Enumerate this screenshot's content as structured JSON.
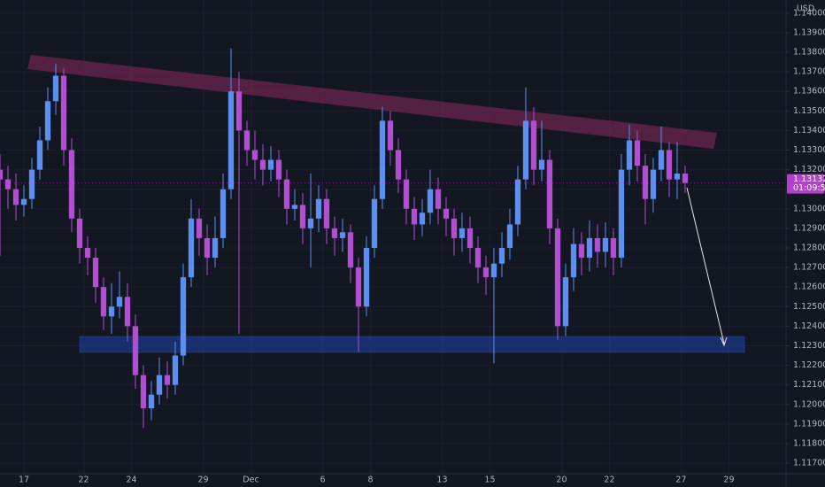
{
  "chart_data": {
    "type": "candlestick",
    "currency": "USD",
    "last_price_label": "1.13132",
    "countdown": "01:09:54",
    "up_color": "#5d8ff0",
    "down_color": "#b04fd0",
    "last_color": "#b63fcf",
    "open": [
      1.132,
      1.1315,
      1.131,
      1.1302,
      1.1305,
      1.132,
      1.1335,
      1.1355,
      1.1368,
      1.133,
      1.1295,
      1.128,
      1.1275,
      1.126,
      1.1245,
      1.125,
      1.1255,
      1.124,
      1.1215,
      1.1198,
      1.1205,
      1.1215,
      1.121,
      1.1225,
      1.1265,
      1.1295,
      1.1285,
      1.1275,
      1.1285,
      1.131,
      1.136,
      1.134,
      1.133,
      1.1325,
      1.132,
      1.1325,
      1.1315,
      1.13,
      1.1302,
      1.129,
      1.1295,
      1.1305,
      1.129,
      1.1285,
      1.1288,
      1.127,
      1.125,
      1.128,
      1.1305,
      1.1345,
      1.133,
      1.1315,
      1.13,
      1.1292,
      1.1298,
      1.131,
      1.13,
      1.1295,
      1.1285,
      1.129,
      1.128,
      1.127,
      1.1265,
      1.1272,
      1.128,
      1.1292,
      1.1315,
      1.1345,
      1.132,
      1.1325,
      1.129,
      1.124,
      1.1265,
      1.1282,
      1.1275,
      1.1285,
      1.1278,
      1.1285,
      1.1275,
      1.132,
      1.1335,
      1.1322,
      1.1305,
      1.132,
      1.133,
      1.1315,
      1.1318
    ],
    "high": [
      1.1328,
      1.1322,
      1.1318,
      1.1312,
      1.1326,
      1.1342,
      1.1362,
      1.1374,
      1.1372,
      1.1336,
      1.13,
      1.1286,
      1.128,
      1.1265,
      1.1262,
      1.1268,
      1.1262,
      1.1246,
      1.122,
      1.1212,
      1.1224,
      1.1222,
      1.1232,
      1.1272,
      1.1305,
      1.13,
      1.1292,
      1.1296,
      1.1318,
      1.1382,
      1.137,
      1.1345,
      1.134,
      1.1333,
      1.1332,
      1.133,
      1.132,
      1.131,
      1.1308,
      1.1318,
      1.1312,
      1.131,
      1.1296,
      1.1295,
      1.1292,
      1.1275,
      1.1286,
      1.1312,
      1.1352,
      1.135,
      1.1336,
      1.132,
      1.1306,
      1.1305,
      1.132,
      1.1316,
      1.1306,
      1.13,
      1.1298,
      1.1296,
      1.1286,
      1.1276,
      1.128,
      1.1288,
      1.13,
      1.1322,
      1.1362,
      1.1352,
      1.1345,
      1.133,
      1.1295,
      1.1272,
      1.129,
      1.1288,
      1.1294,
      1.1292,
      1.1293,
      1.129,
      1.1328,
      1.1343,
      1.134,
      1.1328,
      1.1326,
      1.1342,
      1.1334,
      1.1334,
      1.1322
    ],
    "low": [
      1.1276,
      1.13,
      1.1294,
      1.1296,
      1.13,
      1.1315,
      1.133,
      1.1348,
      1.1322,
      1.1288,
      1.1272,
      1.1266,
      1.1252,
      1.1238,
      1.1236,
      1.1244,
      1.1232,
      1.1208,
      1.1188,
      1.1192,
      1.12,
      1.1203,
      1.1205,
      1.122,
      1.126,
      1.1276,
      1.1266,
      1.127,
      1.128,
      1.1305,
      1.1236,
      1.1322,
      1.1315,
      1.1312,
      1.1314,
      1.1306,
      1.1292,
      1.1294,
      1.1282,
      1.127,
      1.1288,
      1.1282,
      1.1276,
      1.1278,
      1.1262,
      1.1227,
      1.1245,
      1.1275,
      1.13,
      1.1322,
      1.1308,
      1.1292,
      1.1284,
      1.1286,
      1.1292,
      1.1292,
      1.1286,
      1.1276,
      1.1278,
      1.1272,
      1.1262,
      1.1256,
      1.1221,
      1.1265,
      1.1274,
      1.1286,
      1.131,
      1.1312,
      1.1314,
      1.1282,
      1.1233,
      1.1235,
      1.1258,
      1.1266,
      1.1268,
      1.127,
      1.127,
      1.1266,
      1.127,
      1.1312,
      1.1314,
      1.1292,
      1.1298,
      1.1314,
      1.1306,
      1.1305,
      1.1308
    ],
    "close": [
      1.1315,
      1.131,
      1.1302,
      1.1305,
      1.132,
      1.1335,
      1.1355,
      1.1368,
      1.133,
      1.1295,
      1.128,
      1.1275,
      1.126,
      1.1245,
      1.125,
      1.1255,
      1.124,
      1.1215,
      1.1198,
      1.1205,
      1.1215,
      1.121,
      1.1225,
      1.1265,
      1.1295,
      1.1285,
      1.1275,
      1.1285,
      1.131,
      1.136,
      1.134,
      1.133,
      1.1325,
      1.132,
      1.1325,
      1.1315,
      1.13,
      1.1302,
      1.129,
      1.1295,
      1.1305,
      1.129,
      1.1285,
      1.1288,
      1.127,
      1.125,
      1.128,
      1.1305,
      1.1345,
      1.133,
      1.1315,
      1.13,
      1.1292,
      1.1298,
      1.131,
      1.13,
      1.1295,
      1.1285,
      1.129,
      1.128,
      1.127,
      1.1265,
      1.1272,
      1.128,
      1.1292,
      1.1315,
      1.1345,
      1.132,
      1.1325,
      1.129,
      1.124,
      1.1265,
      1.1282,
      1.1275,
      1.1285,
      1.1278,
      1.1285,
      1.1275,
      1.132,
      1.1335,
      1.1322,
      1.1305,
      1.132,
      1.133,
      1.1315,
      1.1318,
      1.13132
    ],
    "xlim": [
      0,
      98.67
    ],
    "xticks": [
      {
        "value": 3,
        "label": "17"
      },
      {
        "value": 10.5,
        "label": "22"
      },
      {
        "value": 16.5,
        "label": "24"
      },
      {
        "value": 25.5,
        "label": "29"
      },
      {
        "value": 31.5,
        "label": "Dec"
      },
      {
        "value": 40.5,
        "label": "6"
      },
      {
        "value": 46.5,
        "label": "8"
      },
      {
        "value": 55.5,
        "label": "13"
      },
      {
        "value": 61.5,
        "label": "15"
      },
      {
        "value": 70.5,
        "label": "20"
      },
      {
        "value": 76.5,
        "label": "22"
      },
      {
        "value": 85.5,
        "label": "27"
      },
      {
        "value": 91.5,
        "label": "29"
      }
    ],
    "ylim": [
      1.11646,
      1.14067
    ],
    "yticks": [
      {
        "value": 1.117,
        "label": "1.11700"
      },
      {
        "value": 1.118,
        "label": "1.11800"
      },
      {
        "value": 1.119,
        "label": "1.11900"
      },
      {
        "value": 1.12,
        "label": "1.12000"
      },
      {
        "value": 1.121,
        "label": "1.12100"
      },
      {
        "value": 1.122,
        "label": "1.12200"
      },
      {
        "value": 1.123,
        "label": "1.12300"
      },
      {
        "value": 1.124,
        "label": "1.12400"
      },
      {
        "value": 1.125,
        "label": "1.12500"
      },
      {
        "value": 1.126,
        "label": "1.12600"
      },
      {
        "value": 1.127,
        "label": "1.12700"
      },
      {
        "value": 1.128,
        "label": "1.12800"
      },
      {
        "value": 1.129,
        "label": "1.12900"
      },
      {
        "value": 1.13,
        "label": "1.13000"
      },
      {
        "value": 1.131,
        "label": "1.13100"
      },
      {
        "value": 1.132,
        "label": "1.13200"
      },
      {
        "value": 1.133,
        "label": "1.13300"
      },
      {
        "value": 1.134,
        "label": "1.13400"
      },
      {
        "value": 1.135,
        "label": "1.13500"
      },
      {
        "value": 1.136,
        "label": "1.13600"
      },
      {
        "value": 1.137,
        "label": "1.13700"
      },
      {
        "value": 1.138,
        "label": "1.13800"
      },
      {
        "value": 1.139,
        "label": "1.13900"
      },
      {
        "value": 1.14,
        "label": "1.14000"
      }
    ]
  }
}
